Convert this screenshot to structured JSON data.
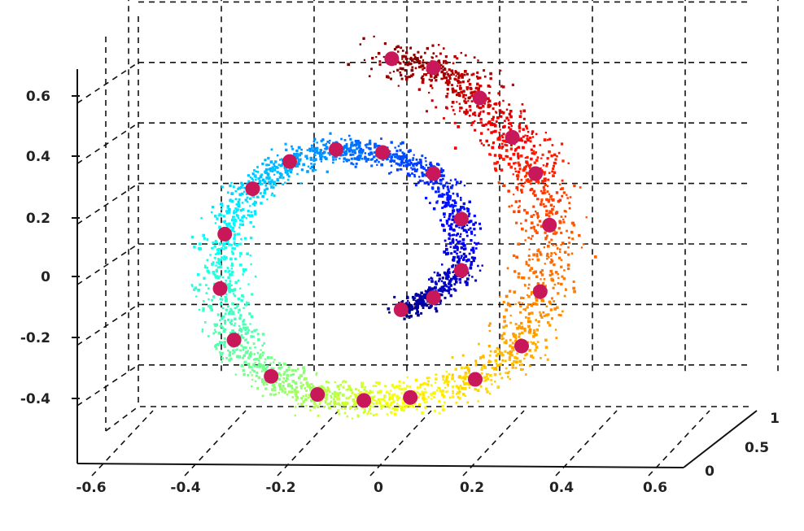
{
  "chart_data": {
    "type": "scatter",
    "dimensions": 3,
    "title": "",
    "xlabel": "",
    "ylabel": "",
    "zlabel": "",
    "x_ticks": [
      "-0.6",
      "-0.4",
      "-0.2",
      "0",
      "0.2",
      "0.4",
      "0.6"
    ],
    "y_ticks": [
      "0.6",
      "0.4",
      "0.2",
      "0",
      "-0.2",
      "-0.4"
    ],
    "z_ticks": [
      "0",
      "0.5",
      "1"
    ],
    "xlim": [
      -0.6,
      0.6
    ],
    "ylim": [
      -0.5,
      0.7
    ],
    "zlim": [
      0,
      1
    ],
    "grid": true,
    "colormap": "jet",
    "colormap_colors": [
      "#00007f",
      "#0000ff",
      "#0080ff",
      "#00ffff",
      "#80ff80",
      "#ffff00",
      "#ff8000",
      "#ff0000",
      "#7f0000"
    ],
    "series": [
      {
        "kind": "dense_point_cloud",
        "description_note": "",
        "colored_by": "position along spiral (jet colormap, dark blue at inner end to dark red at outer end)"
      },
      {
        "kind": "landmarks",
        "marker_color": "#c8185a",
        "points": [
          {
            "x": 0.04,
            "y": -0.11
          },
          {
            "x": 0.11,
            "y": -0.07
          },
          {
            "x": 0.17,
            "y": 0.02
          },
          {
            "x": 0.17,
            "y": 0.19
          },
          {
            "x": 0.11,
            "y": 0.34
          },
          {
            "x": 0.0,
            "y": 0.41
          },
          {
            "x": -0.1,
            "y": 0.42
          },
          {
            "x": -0.2,
            "y": 0.38
          },
          {
            "x": -0.28,
            "y": 0.29
          },
          {
            "x": -0.34,
            "y": 0.14
          },
          {
            "x": -0.35,
            "y": -0.04
          },
          {
            "x": -0.32,
            "y": -0.21
          },
          {
            "x": -0.24,
            "y": -0.33
          },
          {
            "x": -0.14,
            "y": -0.39
          },
          {
            "x": -0.04,
            "y": -0.41
          },
          {
            "x": 0.06,
            "y": -0.4
          },
          {
            "x": 0.2,
            "y": -0.34
          },
          {
            "x": 0.3,
            "y": -0.23
          },
          {
            "x": 0.34,
            "y": -0.05
          },
          {
            "x": 0.36,
            "y": 0.17
          },
          {
            "x": 0.33,
            "y": 0.34
          },
          {
            "x": 0.28,
            "y": 0.46
          },
          {
            "x": 0.21,
            "y": 0.59
          },
          {
            "x": 0.11,
            "y": 0.69
          },
          {
            "x": 0.02,
            "y": 0.72
          }
        ]
      }
    ]
  }
}
